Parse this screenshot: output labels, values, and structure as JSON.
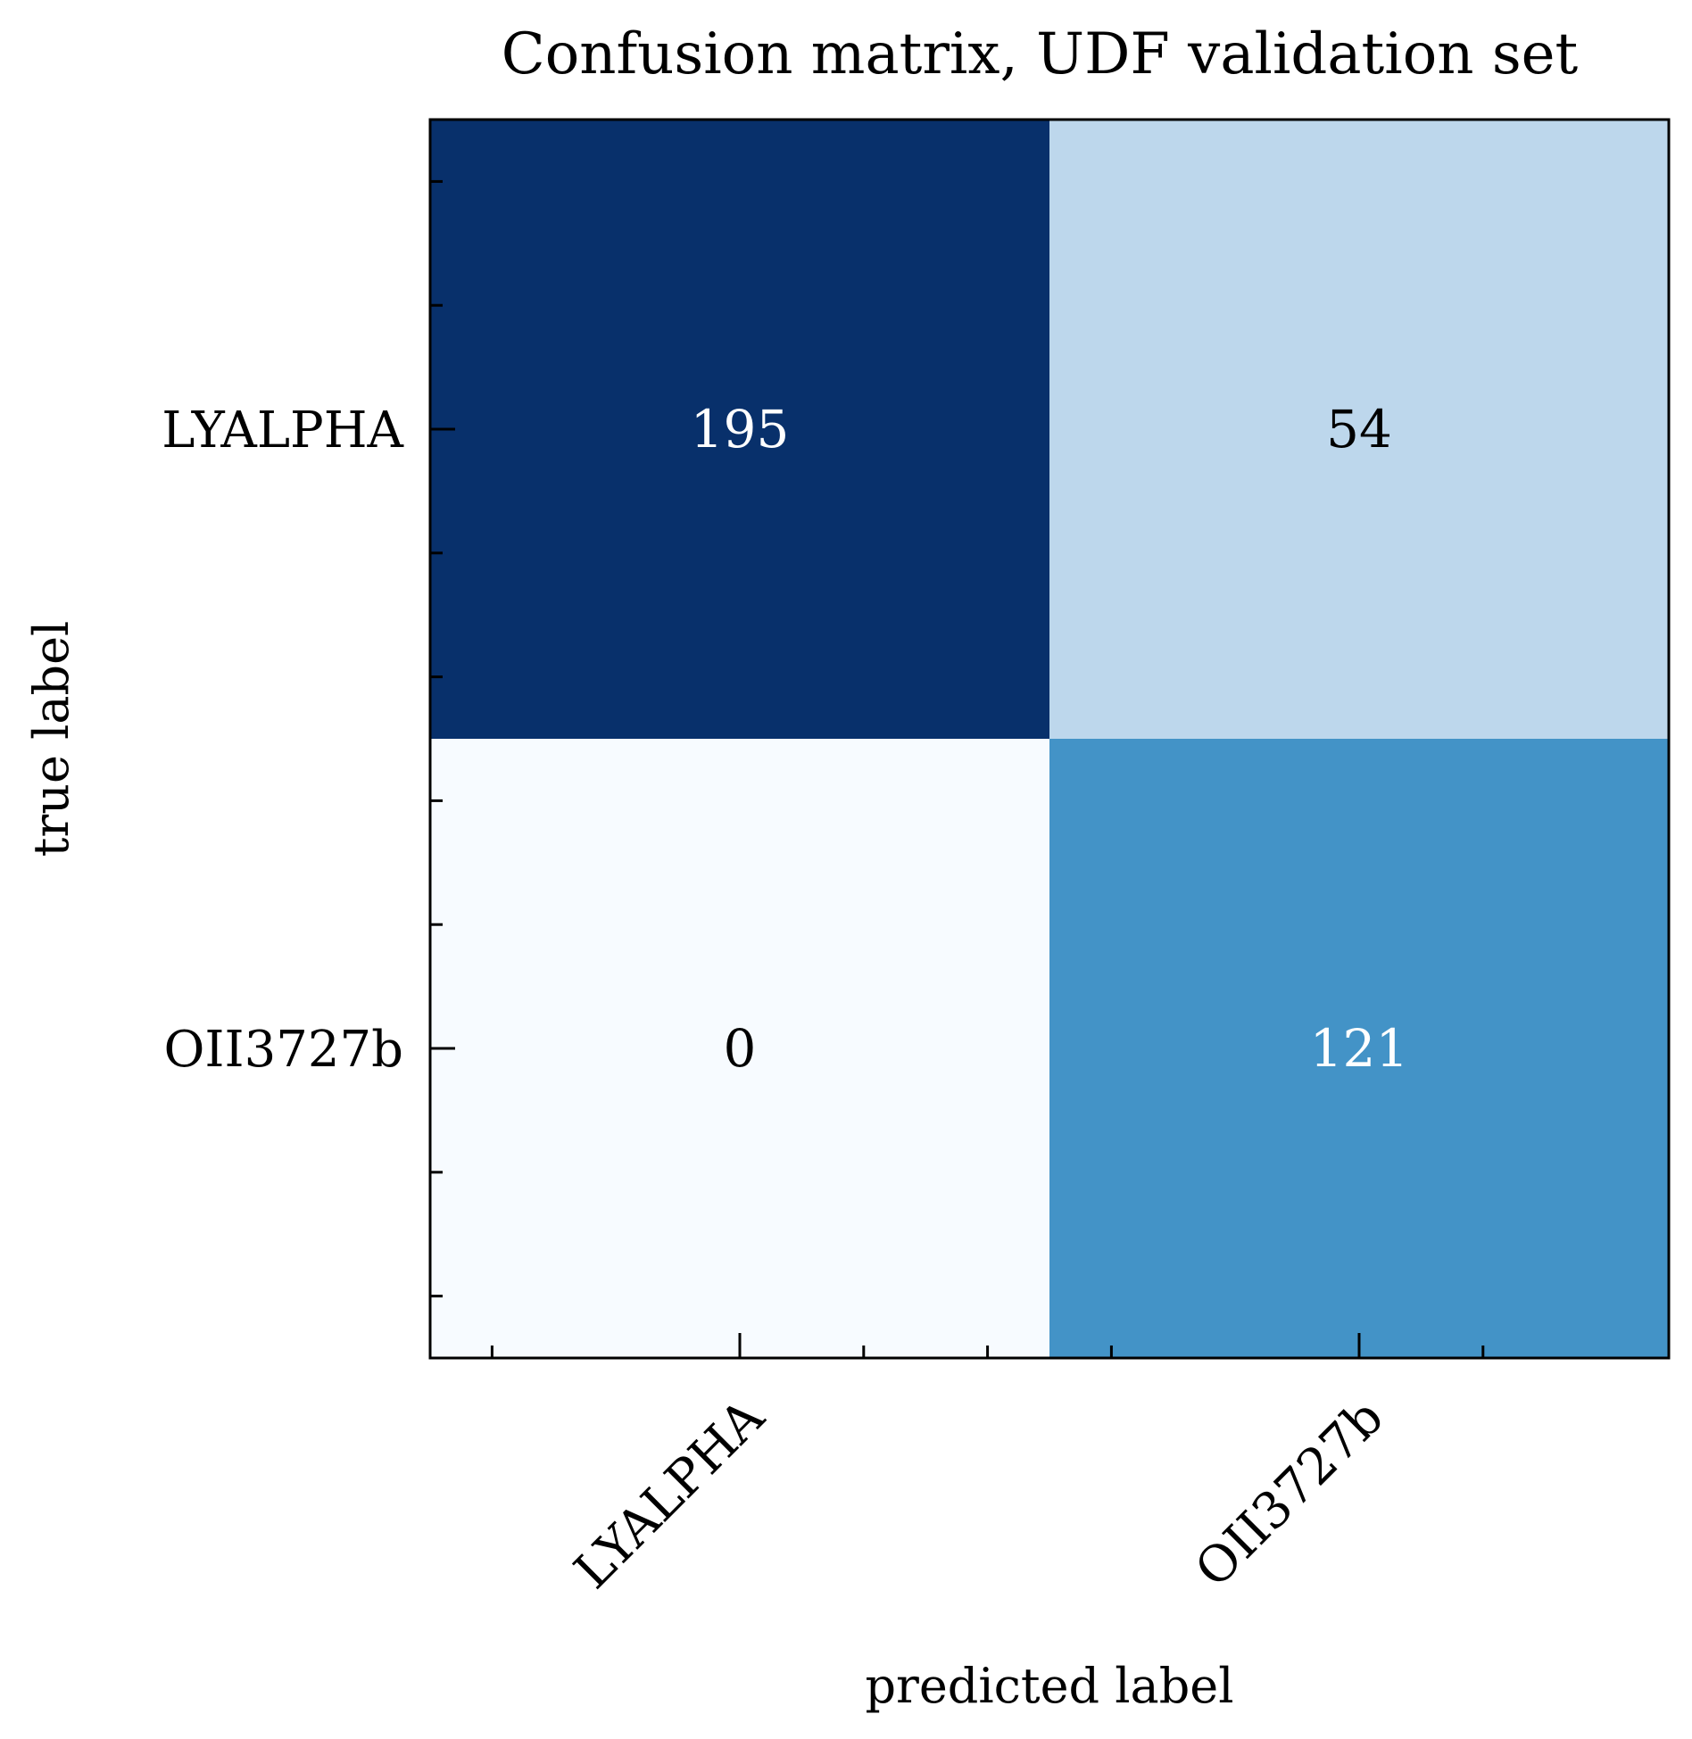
{
  "chart_data": {
    "type": "heatmap",
    "title": "Confusion matrix, UDF validation set",
    "xlabel": "predicted label",
    "ylabel": "true label",
    "x_categories": [
      "LYALPHA",
      "OII3727b"
    ],
    "y_categories": [
      "LYALPHA",
      "OII3727b"
    ],
    "values": [
      [
        195,
        54
      ],
      [
        0,
        121
      ]
    ],
    "colormap": "Blues",
    "value_range": [
      0,
      195
    ],
    "colors": {
      "low": "#f7fbff",
      "high": "#08306b",
      "text_on_dark": "#ffffff",
      "text_on_light": "#000000",
      "axis": "#000000"
    },
    "grid": false
  }
}
